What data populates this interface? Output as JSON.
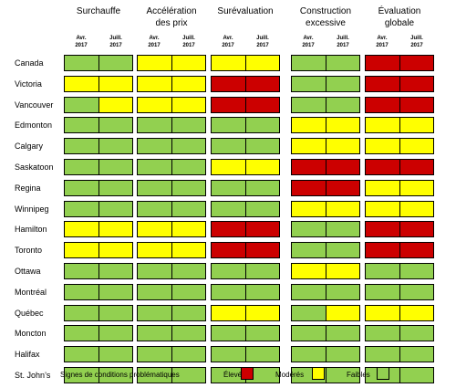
{
  "colors": {
    "eleve": "#cc0000",
    "modere": "#ffff00",
    "faible": "#92d050"
  },
  "groups": [
    {
      "title": "Surchauffe",
      "sub": [
        "Avr.\n2017",
        "Juill.\n2017"
      ]
    },
    {
      "title": "Accélération\ndes prix",
      "sub": [
        "Avr.\n2017",
        "Juill.\n2017"
      ]
    },
    {
      "title": "Surévaluation",
      "sub": [
        "Avr.\n2017",
        "Juill.\n2017"
      ]
    },
    {
      "title": "Construction\nexcessive",
      "sub": [
        "Avr.\n2017",
        "Juill.\n2017"
      ]
    },
    {
      "title": "Évaluation\nglobale",
      "sub": [
        "Avr.\n2017",
        "Juill.\n2017"
      ]
    }
  ],
  "rows": [
    {
      "city": "Canada",
      "cells": [
        "F",
        "F",
        "M",
        "M",
        "M",
        "M",
        "F",
        "F",
        "E",
        "E"
      ]
    },
    {
      "city": "Victoria",
      "cells": [
        "M",
        "M",
        "M",
        "M",
        "E",
        "E",
        "F",
        "F",
        "E",
        "E"
      ]
    },
    {
      "city": "Vancouver",
      "cells": [
        "F",
        "M",
        "M",
        "M",
        "E",
        "E",
        "F",
        "F",
        "E",
        "E"
      ]
    },
    {
      "city": "Edmonton",
      "cells": [
        "F",
        "F",
        "F",
        "F",
        "F",
        "F",
        "M",
        "M",
        "M",
        "M"
      ]
    },
    {
      "city": "Calgary",
      "cells": [
        "F",
        "F",
        "F",
        "F",
        "F",
        "F",
        "M",
        "M",
        "M",
        "M"
      ]
    },
    {
      "city": "Saskatoon",
      "cells": [
        "F",
        "F",
        "F",
        "F",
        "M",
        "M",
        "E",
        "E",
        "E",
        "E"
      ]
    },
    {
      "city": "Regina",
      "cells": [
        "F",
        "F",
        "F",
        "F",
        "F",
        "F",
        "E",
        "E",
        "M",
        "M"
      ]
    },
    {
      "city": "Winnipeg",
      "cells": [
        "F",
        "F",
        "F",
        "F",
        "F",
        "F",
        "M",
        "M",
        "M",
        "M"
      ]
    },
    {
      "city": "Hamilton",
      "cells": [
        "M",
        "M",
        "M",
        "M",
        "E",
        "E",
        "F",
        "F",
        "E",
        "E"
      ]
    },
    {
      "city": "Toronto",
      "cells": [
        "M",
        "M",
        "M",
        "M",
        "E",
        "E",
        "F",
        "F",
        "E",
        "E"
      ]
    },
    {
      "city": "Ottawa",
      "cells": [
        "F",
        "F",
        "F",
        "F",
        "F",
        "F",
        "M",
        "M",
        "F",
        "F"
      ]
    },
    {
      "city": "Montréal",
      "cells": [
        "F",
        "F",
        "F",
        "F",
        "F",
        "F",
        "F",
        "F",
        "F",
        "F"
      ]
    },
    {
      "city": "Québec",
      "cells": [
        "F",
        "F",
        "F",
        "F",
        "M",
        "M",
        "F",
        "M",
        "M",
        "M"
      ]
    },
    {
      "city": "Moncton",
      "cells": [
        "F",
        "F",
        "F",
        "F",
        "F",
        "F",
        "F",
        "F",
        "F",
        "F"
      ]
    },
    {
      "city": "Halifax",
      "cells": [
        "F",
        "F",
        "F",
        "F",
        "F",
        "F",
        "F",
        "F",
        "F",
        "F"
      ]
    },
    {
      "city": "St. John’s",
      "cells": [
        "F",
        "F",
        "F",
        "F",
        "F",
        "F",
        "F",
        "F",
        "F",
        "F"
      ]
    }
  ],
  "legend": {
    "title": "Signes  de  conditions  problématiques",
    "eleve": "Élevés",
    "modere": "Modérés",
    "faible": "Faibles"
  }
}
